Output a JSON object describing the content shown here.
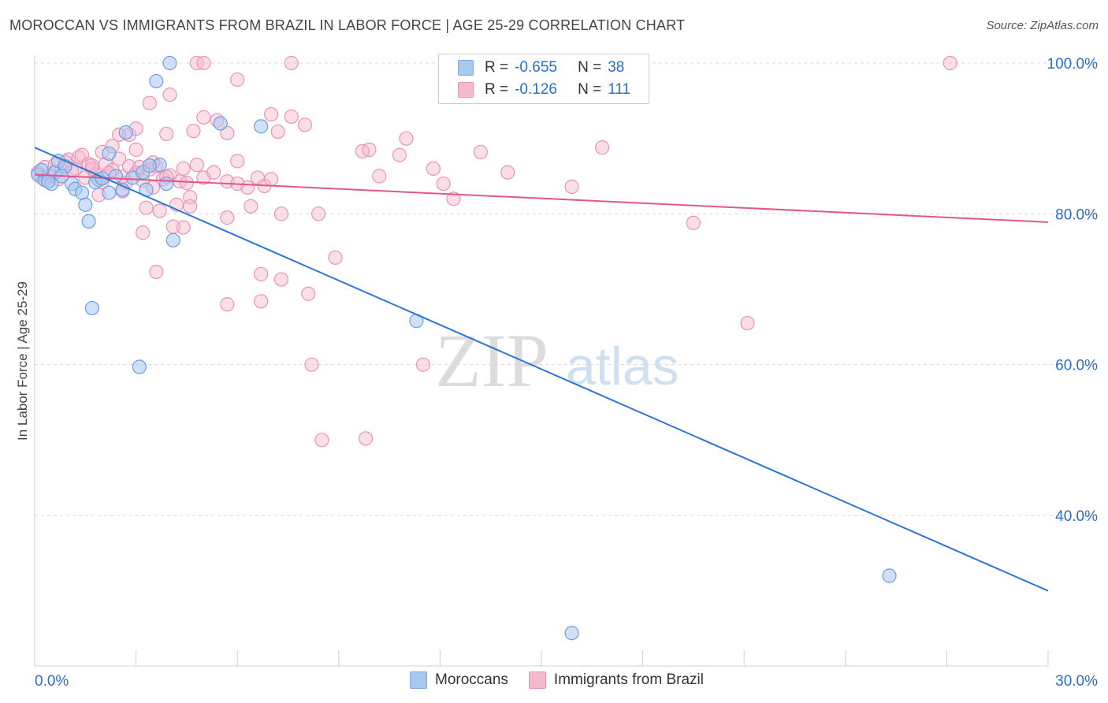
{
  "title": "MOROCCAN VS IMMIGRANTS FROM BRAZIL IN LABOR FORCE | AGE 25-29 CORRELATION CHART",
  "source": "Source: ZipAtlas.com",
  "watermark": {
    "zip": "ZIP",
    "atlas": "atlas"
  },
  "colors": {
    "blue": "#2f77d6",
    "blue_fill": "#a9c8f0",
    "pink": "#e2578a",
    "pink_fill": "#f5b9cd",
    "grid": "#d8d8d8",
    "tick_label": "#2a6fc9"
  },
  "stats_legend": {
    "series": [
      {
        "r_label": "R =",
        "r_value": "-0.655",
        "n_label": "N =",
        "n_value": "38"
      },
      {
        "r_label": "R =",
        "r_value": "-0.126",
        "n_label": "N =",
        "n_value": "111"
      }
    ]
  },
  "chart_data": {
    "type": "scatter",
    "title": "MOROCCAN VS IMMIGRANTS FROM BRAZIL IN LABOR FORCE | AGE 25-29 CORRELATION CHART",
    "xlabel": "",
    "ylabel": "In Labor Force | Age 25-29",
    "xlim": [
      0,
      30
    ],
    "ylim": [
      20,
      102
    ],
    "x_tick_labels": [
      "0.0%",
      "30.0%"
    ],
    "y_ticks": [
      40,
      60,
      80,
      100
    ],
    "y_tick_labels": [
      "40.0%",
      "60.0%",
      "80.0%",
      "100.0%"
    ],
    "grid": true,
    "legend": [
      "Moroccans",
      "Immigrants from Brazil"
    ],
    "series": [
      {
        "name": "Moroccans",
        "color": "#2f77d6",
        "trend": {
          "x": [
            0,
            30
          ],
          "y": [
            88.8,
            30.0
          ]
        },
        "points": [
          [
            0.1,
            85.2
          ],
          [
            0.3,
            84.5
          ],
          [
            0.5,
            84.0
          ],
          [
            0.6,
            85.5
          ],
          [
            0.7,
            87.0
          ],
          [
            0.9,
            86.3
          ],
          [
            1.1,
            84.0
          ],
          [
            1.2,
            83.3
          ],
          [
            1.4,
            82.8
          ],
          [
            1.5,
            81.2
          ],
          [
            1.6,
            79.0
          ],
          [
            1.9,
            84.5
          ],
          [
            2.2,
            82.8
          ],
          [
            2.4,
            85.0
          ],
          [
            2.6,
            83.2
          ],
          [
            2.9,
            84.8
          ],
          [
            3.2,
            85.5
          ],
          [
            3.7,
            86.5
          ],
          [
            3.9,
            84.0
          ],
          [
            4.1,
            76.5
          ],
          [
            3.3,
            83.2
          ],
          [
            4.0,
            100.0
          ],
          [
            3.6,
            97.6
          ],
          [
            5.5,
            92.0
          ],
          [
            6.7,
            91.6
          ],
          [
            2.2,
            88.0
          ],
          [
            2.7,
            90.8
          ],
          [
            1.7,
            67.5
          ],
          [
            3.1,
            59.7
          ],
          [
            11.3,
            65.8
          ],
          [
            25.3,
            32.0
          ],
          [
            15.9,
            24.4
          ],
          [
            0.2,
            85.8
          ],
          [
            0.8,
            85.0
          ],
          [
            1.8,
            84.2
          ],
          [
            3.4,
            86.4
          ],
          [
            2.0,
            84.7
          ],
          [
            0.4,
            84.3
          ]
        ]
      },
      {
        "name": "Immigrants from Brazil",
        "color": "#e2578a",
        "trend": {
          "x": [
            0,
            30
          ],
          "y": [
            85.2,
            78.9
          ]
        },
        "points": [
          [
            0.1,
            85.5
          ],
          [
            0.2,
            84.8
          ],
          [
            0.3,
            86.2
          ],
          [
            0.5,
            85.0
          ],
          [
            0.6,
            86.5
          ],
          [
            0.8,
            85.8
          ],
          [
            1.0,
            87.2
          ],
          [
            1.2,
            86.0
          ],
          [
            1.3,
            87.5
          ],
          [
            1.5,
            84.8
          ],
          [
            1.7,
            86.0
          ],
          [
            1.8,
            85.2
          ],
          [
            2.0,
            84.2
          ],
          [
            2.1,
            86.6
          ],
          [
            2.3,
            85.8
          ],
          [
            2.5,
            87.3
          ],
          [
            2.6,
            84.9
          ],
          [
            2.8,
            86.3
          ],
          [
            3.0,
            85.4
          ],
          [
            3.2,
            84.4
          ],
          [
            3.4,
            85.9
          ],
          [
            3.6,
            86.3
          ],
          [
            3.8,
            84.6
          ],
          [
            4.0,
            85.1
          ],
          [
            4.3,
            84.3
          ],
          [
            4.6,
            82.2
          ],
          [
            4.2,
            81.2
          ],
          [
            4.5,
            84.1
          ],
          [
            4.8,
            86.5
          ],
          [
            5.0,
            84.8
          ],
          [
            5.3,
            85.5
          ],
          [
            5.7,
            84.3
          ],
          [
            6.0,
            87.0
          ],
          [
            6.3,
            83.5
          ],
          [
            6.6,
            84.8
          ],
          [
            6.8,
            83.7
          ],
          [
            7.0,
            84.6
          ],
          [
            2.3,
            89.0
          ],
          [
            2.8,
            90.5
          ],
          [
            3.0,
            91.3
          ],
          [
            2.5,
            90.5
          ],
          [
            3.5,
            86.8
          ],
          [
            1.4,
            87.8
          ],
          [
            2.0,
            88.2
          ],
          [
            3.0,
            88.5
          ],
          [
            4.0,
            95.8
          ],
          [
            4.8,
            100.0
          ],
          [
            5.0,
            100.0
          ],
          [
            7.6,
            100.0
          ],
          [
            6.0,
            97.8
          ],
          [
            3.4,
            94.7
          ],
          [
            5.0,
            92.8
          ],
          [
            5.4,
            92.4
          ],
          [
            7.0,
            93.2
          ],
          [
            7.6,
            92.9
          ],
          [
            8.0,
            91.8
          ],
          [
            4.7,
            91.0
          ],
          [
            3.9,
            90.6
          ],
          [
            5.7,
            90.7
          ],
          [
            7.2,
            90.9
          ],
          [
            11.0,
            90.0
          ],
          [
            9.7,
            88.3
          ],
          [
            10.8,
            87.8
          ],
          [
            13.2,
            88.2
          ],
          [
            16.8,
            88.8
          ],
          [
            6.0,
            84.0
          ],
          [
            9.9,
            88.5
          ],
          [
            11.8,
            86.0
          ],
          [
            12.1,
            84.0
          ],
          [
            14.0,
            85.5
          ],
          [
            10.2,
            85.0
          ],
          [
            12.4,
            82.0
          ],
          [
            15.9,
            83.6
          ],
          [
            6.4,
            81.0
          ],
          [
            7.3,
            80.0
          ],
          [
            8.4,
            80.0
          ],
          [
            5.7,
            79.5
          ],
          [
            3.3,
            80.8
          ],
          [
            3.7,
            80.4
          ],
          [
            4.6,
            81.0
          ],
          [
            4.4,
            78.2
          ],
          [
            4.1,
            78.3
          ],
          [
            3.2,
            77.5
          ],
          [
            8.9,
            74.2
          ],
          [
            3.6,
            72.3
          ],
          [
            6.7,
            72.0
          ],
          [
            7.3,
            71.3
          ],
          [
            8.1,
            69.4
          ],
          [
            5.7,
            68.0
          ],
          [
            6.7,
            68.4
          ],
          [
            8.2,
            60.0
          ],
          [
            11.5,
            60.0
          ],
          [
            8.5,
            50.0
          ],
          [
            9.8,
            50.2
          ],
          [
            19.5,
            78.8
          ],
          [
            21.1,
            65.5
          ],
          [
            27.1,
            100.0
          ],
          [
            0.4,
            85.0
          ],
          [
            0.7,
            84.6
          ],
          [
            1.1,
            85.7
          ],
          [
            1.6,
            86.6
          ],
          [
            2.2,
            85.4
          ],
          [
            2.7,
            84.1
          ],
          [
            3.1,
            86.2
          ],
          [
            3.9,
            84.9
          ],
          [
            4.4,
            86.0
          ],
          [
            1.9,
            82.5
          ],
          [
            2.6,
            83.0
          ],
          [
            3.5,
            83.5
          ],
          [
            0.9,
            86.9
          ],
          [
            1.7,
            86.4
          ]
        ]
      }
    ]
  }
}
